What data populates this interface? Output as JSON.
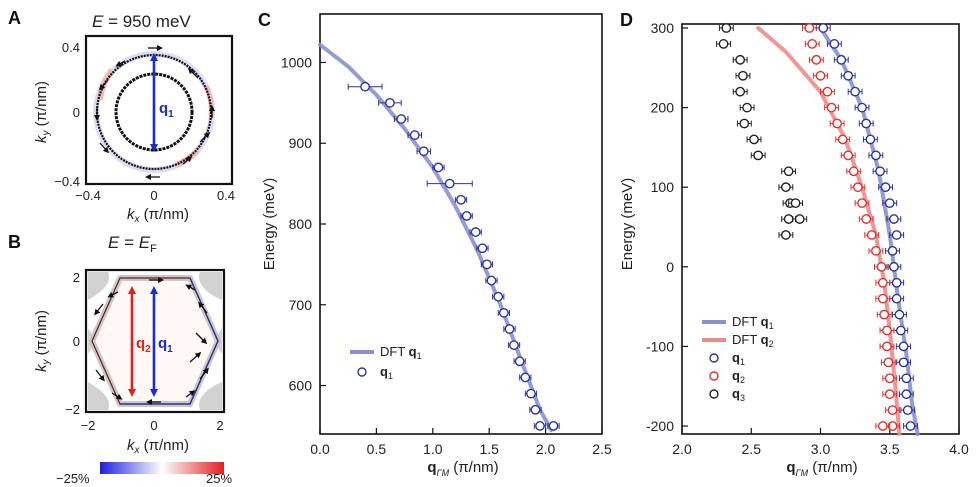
{
  "panels": {
    "A": {
      "letter": "A",
      "title": "E = 950 meV",
      "title_E": "E",
      "title_rest": " = 950 meV",
      "xlabel": "kx (π/nm)",
      "ylabel": "ky (π/nm)",
      "xticks": [
        "−0.4",
        "0",
        "0.4"
      ],
      "yticks": [
        "0.4",
        "0",
        "−0.4"
      ],
      "vector_label": "q",
      "vector_sub": "1"
    },
    "B": {
      "letter": "B",
      "title_E": "E",
      "title_mid": " = ",
      "title_EF": "E",
      "title_F": "F",
      "xticks": [
        "−2",
        "0",
        "2"
      ],
      "yticks": [
        "2",
        "0",
        "−2"
      ],
      "vec1_label": "q",
      "vec1_sub": "2",
      "vec2_label": "q",
      "vec2_sub": "1",
      "colorbar_min": "−25%",
      "colorbar_max": "25%"
    },
    "C": {
      "letter": "C"
    },
    "D": {
      "letter": "D"
    }
  },
  "colors": {
    "blue_line": "#8a90cf",
    "red_line": "#f08a8a",
    "blue_mark": "#2b35a0",
    "red_mark": "#e0322e",
    "black_mark": "#222222"
  },
  "chart_data": [
    {
      "panel": "C",
      "type": "scatter",
      "xlabel": "qΓM (π/nm)",
      "ylabel": "Energy (meV)",
      "xlim": [
        0.0,
        2.5
      ],
      "ylim": [
        540,
        1060
      ],
      "xticks": [
        "0.0",
        "0.5",
        "1.0",
        "1.5",
        "2.0",
        "2.5"
      ],
      "yticks": [
        "600",
        "700",
        "800",
        "900",
        "1000"
      ],
      "series": [
        {
          "name": "DFT q1",
          "kind": "line",
          "color": "#8a90cf",
          "x": [
            0.0,
            0.25,
            0.5,
            0.75,
            1.0,
            1.2,
            1.4,
            1.6,
            1.8,
            1.95,
            2.05
          ],
          "y": [
            1022,
            995,
            960,
            918,
            870,
            822,
            766,
            700,
            625,
            570,
            545
          ]
        },
        {
          "name": "q1",
          "kind": "points",
          "color": "#2b35a0",
          "x": [
            0.4,
            0.62,
            0.72,
            0.84,
            0.92,
            1.05,
            1.15,
            1.25,
            1.3,
            1.38,
            1.44,
            1.48,
            1.52,
            1.58,
            1.63,
            1.68,
            1.72,
            1.77,
            1.82,
            1.87,
            1.91,
            1.95,
            1.98,
            2.02,
            2.07
          ],
          "y": [
            970,
            950,
            930,
            910,
            890,
            870,
            850,
            830,
            810,
            790,
            770,
            750,
            730,
            710,
            690,
            670,
            650,
            630,
            610,
            590,
            570,
            550,
            530,
            510,
            550
          ],
          "xerr": [
            0.15,
            0.1,
            0.06,
            0.06,
            0.06,
            0.05,
            0.2,
            0.05,
            0.05,
            0.05,
            0.05,
            0.05,
            0.05,
            0.05,
            0.05,
            0.05,
            0.05,
            0.05,
            0.05,
            0.05,
            0.05,
            0.05,
            0.05,
            0.05,
            0.05
          ]
        }
      ],
      "legend": [
        {
          "label": "DFT",
          "bold": "q",
          "sub": "1"
        },
        {
          "label": "",
          "bold": "q",
          "sub": "1"
        }
      ]
    },
    {
      "panel": "D",
      "type": "scatter",
      "xlabel": "qΓM (π/nm)",
      "ylabel": "Energy (meV)",
      "xlim": [
        2.0,
        4.0
      ],
      "ylim": [
        -210,
        305
      ],
      "xticks": [
        "2.0",
        "2.5",
        "3.0",
        "3.5",
        "4.0"
      ],
      "yticks": [
        "300",
        "200",
        "100",
        "0",
        "-100",
        "-200"
      ],
      "series": [
        {
          "name": "DFT q1",
          "kind": "line",
          "color": "#8a90cf",
          "x": [
            3.0,
            3.15,
            3.3,
            3.42,
            3.5,
            3.56,
            3.62,
            3.66,
            3.7
          ],
          "y": [
            300,
            260,
            200,
            120,
            40,
            -40,
            -110,
            -170,
            -210
          ]
        },
        {
          "name": "DFT q2",
          "kind": "line",
          "color": "#f08a8a",
          "x": [
            2.55,
            2.75,
            3.0,
            3.18,
            3.3,
            3.4,
            3.46,
            3.5,
            3.54,
            3.57
          ],
          "y": [
            300,
            270,
            220,
            160,
            100,
            40,
            -20,
            -80,
            -150,
            -210
          ]
        },
        {
          "name": "q1",
          "kind": "points",
          "color": "#2b35a0",
          "x": [
            3.02,
            3.1,
            3.15,
            3.2,
            3.25,
            3.3,
            3.33,
            3.36,
            3.4,
            3.43,
            3.47,
            3.5,
            3.53,
            3.55,
            3.52,
            3.53,
            3.55,
            3.55,
            3.57,
            3.58,
            3.6,
            3.6,
            3.62,
            3.62,
            3.63,
            3.65
          ],
          "y": [
            300,
            280,
            260,
            240,
            220,
            200,
            180,
            160,
            140,
            120,
            100,
            80,
            60,
            40,
            20,
            0,
            -20,
            -40,
            -60,
            -80,
            -100,
            -120,
            -140,
            -160,
            -180,
            -200
          ]
        },
        {
          "name": "q2",
          "kind": "points",
          "color": "#e0322e",
          "x": [
            2.92,
            2.94,
            2.97,
            3.0,
            3.05,
            3.08,
            3.12,
            3.16,
            3.2,
            3.24,
            3.27,
            3.3,
            3.33,
            3.37,
            3.4,
            3.44,
            3.45,
            3.45,
            3.46,
            3.48,
            3.48,
            3.49,
            3.5,
            3.5,
            3.52,
            3.52,
            3.45
          ],
          "y": [
            300,
            280,
            260,
            240,
            220,
            200,
            180,
            160,
            140,
            120,
            100,
            80,
            60,
            40,
            20,
            0,
            -20,
            -40,
            -60,
            -80,
            -100,
            -120,
            -140,
            -160,
            -180,
            -200,
            -200
          ]
        },
        {
          "name": "q3",
          "kind": "points",
          "color": "#222222",
          "x": [
            2.32,
            2.3,
            2.42,
            2.44,
            2.42,
            2.47,
            2.45,
            2.52,
            2.55,
            2.77,
            2.75,
            2.78,
            2.77,
            2.75,
            2.82,
            2.85
          ],
          "y": [
            300,
            280,
            260,
            240,
            220,
            200,
            180,
            160,
            140,
            120,
            100,
            80,
            60,
            40,
            80,
            60
          ]
        }
      ],
      "legend": [
        {
          "label": "DFT",
          "bold": "q",
          "sub": "1"
        },
        {
          "label": "DFT",
          "bold": "q",
          "sub": "2"
        },
        {
          "label": "",
          "bold": "q",
          "sub": "1"
        },
        {
          "label": "",
          "bold": "q",
          "sub": "2"
        },
        {
          "label": "",
          "bold": "q",
          "sub": "3"
        }
      ]
    }
  ]
}
